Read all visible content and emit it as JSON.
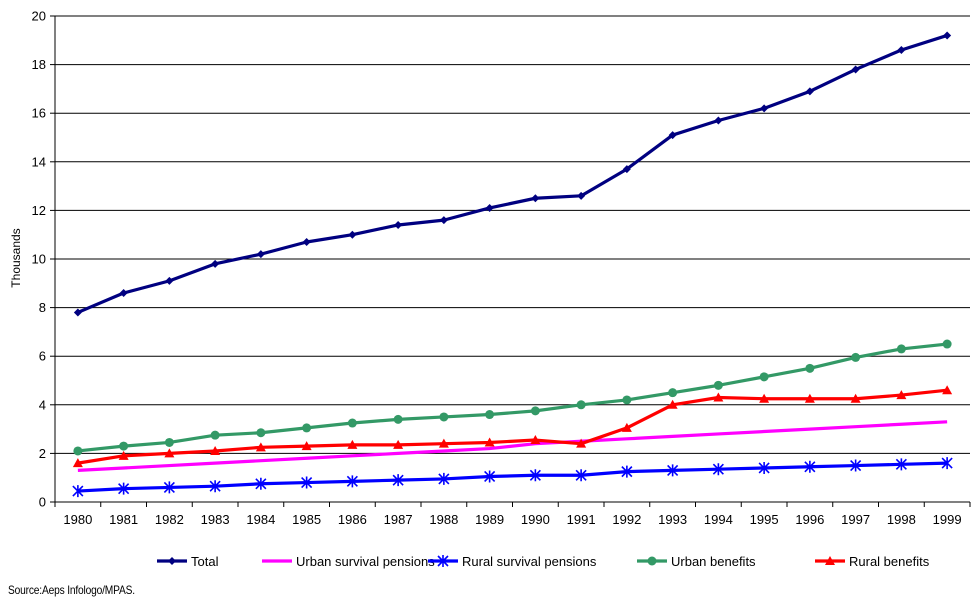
{
  "chart_data": {
    "type": "line",
    "title": "",
    "xlabel": "",
    "ylabel": "Thousands",
    "ylim": [
      0,
      20
    ],
    "yticks": [
      0,
      2,
      4,
      6,
      8,
      10,
      12,
      14,
      16,
      18,
      20
    ],
    "grid": "horizontal",
    "legend_position": "bottom",
    "categories": [
      "1980",
      "1981",
      "1982",
      "1983",
      "1984",
      "1985",
      "1986",
      "1987",
      "1988",
      "1989",
      "1990",
      "1991",
      "1992",
      "1993",
      "1994",
      "1995",
      "1996",
      "1997",
      "1998",
      "1999"
    ],
    "series": [
      {
        "name": "Total",
        "color": "#000080",
        "marker": "diamond",
        "values": [
          7.8,
          8.6,
          9.1,
          9.8,
          10.2,
          10.7,
          11.0,
          11.4,
          11.6,
          12.1,
          12.5,
          12.6,
          13.7,
          15.1,
          15.7,
          16.2,
          16.9,
          17.8,
          18.6,
          19.2
        ]
      },
      {
        "name": "Urban survival pensions",
        "color": "#FF00FF",
        "marker": "none",
        "values": [
          1.3,
          1.4,
          1.5,
          1.6,
          1.7,
          1.8,
          1.9,
          2.0,
          2.1,
          2.2,
          2.4,
          2.5,
          2.6,
          2.7,
          2.8,
          2.9,
          3.0,
          3.1,
          3.2,
          3.3
        ]
      },
      {
        "name": "Rural survival pensions",
        "color": "#0000FF",
        "marker": "asterisk",
        "values": [
          0.45,
          0.55,
          0.6,
          0.65,
          0.75,
          0.8,
          0.85,
          0.9,
          0.95,
          1.05,
          1.1,
          1.1,
          1.25,
          1.3,
          1.35,
          1.4,
          1.45,
          1.5,
          1.55,
          1.6
        ]
      },
      {
        "name": "Urban benefits",
        "color": "#339966",
        "marker": "circle",
        "values": [
          2.1,
          2.3,
          2.45,
          2.75,
          2.85,
          3.05,
          3.25,
          3.4,
          3.5,
          3.6,
          3.75,
          4.0,
          4.2,
          4.5,
          4.8,
          5.15,
          5.5,
          5.95,
          6.3,
          6.5
        ]
      },
      {
        "name": "Rural benefits",
        "color": "#FF0000",
        "marker": "triangle",
        "values": [
          1.6,
          1.9,
          2.0,
          2.1,
          2.25,
          2.3,
          2.35,
          2.35,
          2.4,
          2.45,
          2.55,
          2.4,
          3.05,
          4.0,
          4.3,
          4.25,
          4.25,
          4.25,
          4.4,
          4.6
        ]
      }
    ]
  },
  "source_note": "Source:Aeps Infologo/MPAS."
}
